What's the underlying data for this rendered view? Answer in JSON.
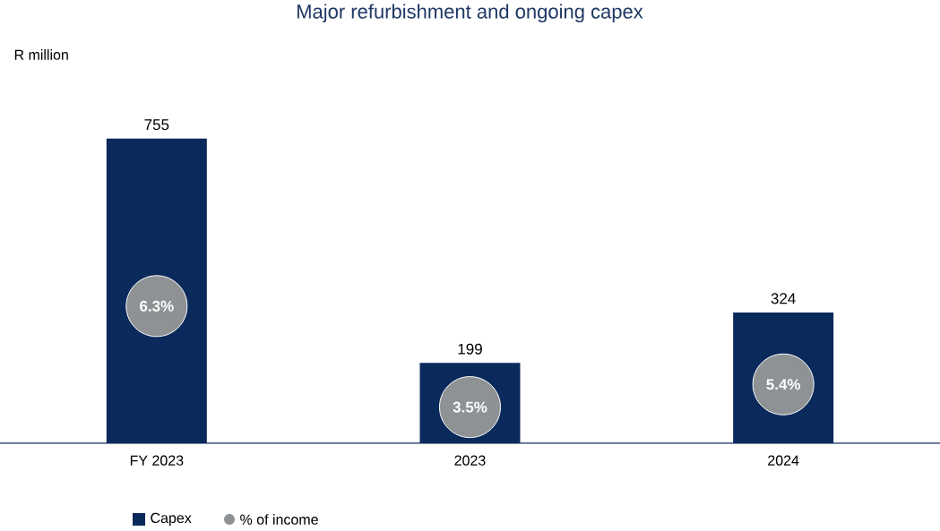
{
  "chart_data": {
    "type": "bar",
    "title": "Major refurbishment and ongoing capex",
    "categories": [
      "FY 2023",
      "2023",
      "2024"
    ],
    "series": [
      {
        "name": "Capex",
        "color": "#0b2a5c",
        "values": [
          755,
          199,
          324
        ]
      }
    ],
    "annotations": [
      "R million",
      "6.3%",
      "3.5%",
      "5.4%",
      "% of income"
    ],
    "data_labels": true,
    "tick_labels": "x",
    "legend": "bottom left"
  }
}
